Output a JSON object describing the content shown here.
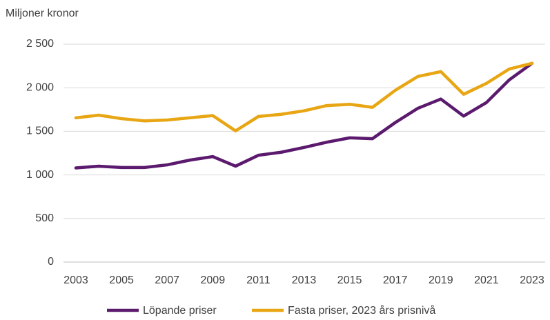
{
  "chart_data": {
    "type": "line",
    "ylabel": "Miljoner kronor",
    "x": [
      2003,
      2004,
      2005,
      2006,
      2007,
      2008,
      2009,
      2010,
      2011,
      2012,
      2013,
      2014,
      2015,
      2016,
      2017,
      2018,
      2019,
      2020,
      2021,
      2022,
      2023
    ],
    "series": [
      {
        "name": "Löpande priser",
        "color": "#5b1a6e",
        "values": [
          1080,
          1100,
          1085,
          1085,
          1115,
          1170,
          1210,
          1100,
          1225,
          1260,
          1315,
          1375,
          1425,
          1415,
          1600,
          1765,
          1870,
          1675,
          1830,
          2090,
          2280
        ]
      },
      {
        "name": "Fasta priser, 2023 års prisnivå",
        "color": "#e8a614",
        "values": [
          1655,
          1685,
          1645,
          1620,
          1630,
          1655,
          1680,
          1505,
          1670,
          1695,
          1735,
          1795,
          1810,
          1775,
          1970,
          2130,
          2185,
          1925,
          2050,
          2215,
          2280
        ]
      }
    ],
    "xlim": [
      2003,
      2023
    ],
    "xticks": [
      2003,
      2005,
      2007,
      2009,
      2011,
      2013,
      2015,
      2017,
      2019,
      2021,
      2023
    ],
    "ylim": [
      0,
      2500
    ],
    "yticks": [
      0,
      {
        "value": 500,
        "label": "500"
      },
      {
        "value": 1000,
        "label": "1 000"
      },
      {
        "value": 1500,
        "label": "1 500"
      },
      {
        "value": 2000,
        "label": "2 000"
      },
      {
        "value": 2500,
        "label": "2 500"
      }
    ],
    "grid": true,
    "legend": "bottom"
  }
}
